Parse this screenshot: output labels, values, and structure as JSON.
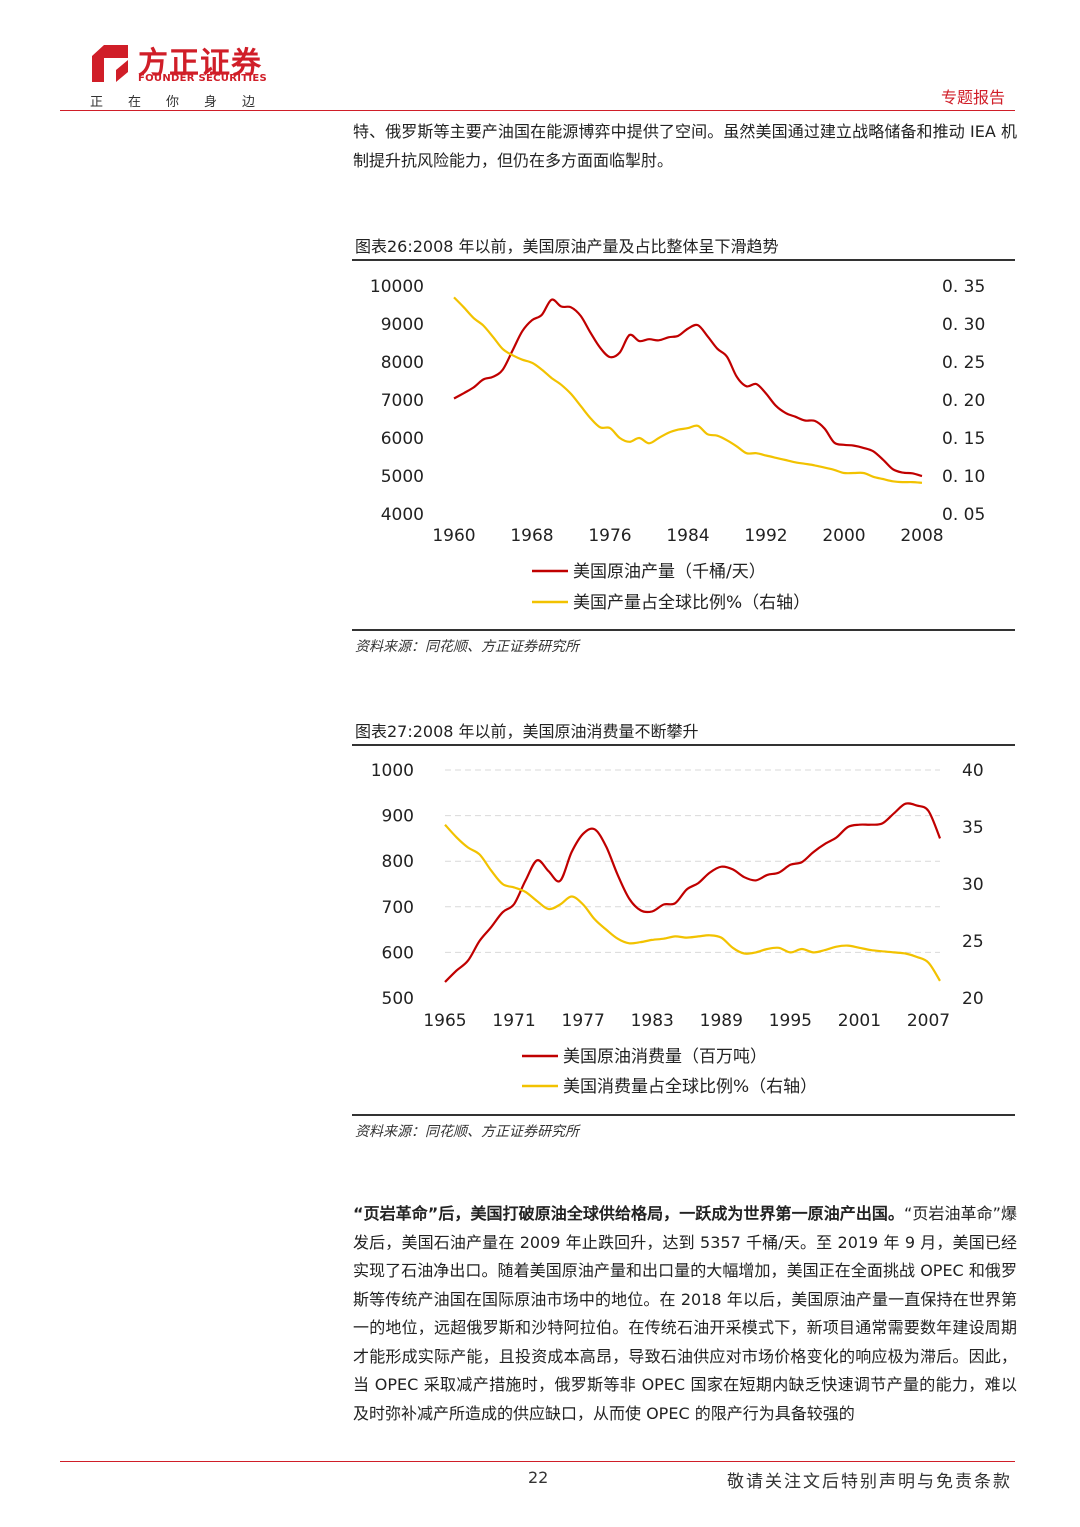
{
  "header": {
    "brand_cn": "方正证券",
    "brand_en": "FOUNDER SECURITIES",
    "slogan": "正在你身边",
    "doc_type": "专题报告",
    "brand_color": "#d01e28"
  },
  "intro_text": "特、俄罗斯等主要产油国在能源博弈中提供了空间。虽然美国通过建立战略储备和推动 IEA 机制提升抗风险能力，但仍在多方面面临掣肘。",
  "figure26": {
    "title": "图表26:2008 年以前，美国原油产量及占比整体呈下滑趋势",
    "source": "资料来源：同花顺、方正证券研究所"
  },
  "figure27": {
    "title": "图表27:2008 年以前，美国原油消费量不断攀升",
    "source": "资料来源：同花顺、方正证券研究所"
  },
  "body": {
    "lead": "“页岩革命”后，美国打破原油全球供给格局，一跃成为世界第一原油产出国。",
    "text": "“页岩油革命”爆发后，美国石油产量在 2009 年止跌回升，达到 5357 千桶/天。至 2019 年 9 月，美国已经实现了石油净出口。随着美国原油产量和出口量的大幅增加，美国正在全面挑战 OPEC 和俄罗斯等传统产油国在国际原油市场中的地位。在 2018 年以后，美国原油产量一直保持在世界第一的地位，远超俄罗斯和沙特阿拉伯。在传统石油开采模式下，新项目通常需要数年建设周期才能形成实际产能，且投资成本高昂，导致石油供应对市场价格变化的响应极为滞后。因此，当 OPEC 采取减产措施时，俄罗斯等非 OPEC 国家在短期内缺乏快速调节产量的能力，难以及时弥补减产所造成的供应缺口，从而使 OPEC 的限产行为具备较强的"
  },
  "footer": {
    "page_number": "22",
    "disclaimer": "敬请关注文后特别声明与免责条款"
  },
  "chart_data": [
    {
      "type": "line",
      "id": "fig26",
      "x_ticks": [
        "1960",
        "1968",
        "1976",
        "1984",
        "1992",
        "2000",
        "2008"
      ],
      "y_left_ticks": [
        "10000",
        "9000",
        "8000",
        "7000",
        "6000",
        "5000",
        "4000"
      ],
      "y_right_ticks": [
        "0. 35",
        "0. 30",
        "0. 25",
        "0. 20",
        "0. 15",
        "0. 10",
        "0. 05"
      ],
      "ylim_left": [
        4000,
        10000
      ],
      "ylim_right": [
        0.05,
        0.35
      ],
      "xlim": [
        1960,
        2008
      ],
      "grid": false,
      "legend_position": "bottom",
      "series": [
        {
          "name": "美国原油产量（千桶/天）",
          "axis": "left",
          "color": "#c00000",
          "x": [
            1960,
            1961,
            1962,
            1963,
            1964,
            1965,
            1966,
            1967,
            1968,
            1969,
            1970,
            1971,
            1972,
            1973,
            1974,
            1975,
            1976,
            1977,
            1978,
            1979,
            1980,
            1981,
            1982,
            1983,
            1984,
            1985,
            1986,
            1987,
            1988,
            1989,
            1990,
            1991,
            1992,
            1993,
            1994,
            1995,
            1996,
            1997,
            1998,
            1999,
            2000,
            2001,
            2002,
            2003,
            2004,
            2005,
            2006,
            2007,
            2008
          ],
          "values": [
            7040,
            7180,
            7330,
            7540,
            7610,
            7800,
            8300,
            8810,
            9100,
            9240,
            9640,
            9460,
            9440,
            9210,
            8770,
            8370,
            8130,
            8250,
            8710,
            8550,
            8600,
            8570,
            8650,
            8690,
            8880,
            8970,
            8680,
            8350,
            8140,
            7610,
            7360,
            7420,
            7170,
            6850,
            6660,
            6560,
            6460,
            6450,
            6250,
            5880,
            5820,
            5800,
            5740,
            5650,
            5430,
            5180,
            5090,
            5070,
            5000
          ]
        },
        {
          "name": "美国产量占全球比例%（右轴）",
          "axis": "right",
          "color": "#f2c200",
          "x": [
            1960,
            1961,
            1962,
            1963,
            1964,
            1965,
            1966,
            1967,
            1968,
            1969,
            1970,
            1971,
            1972,
            1973,
            1974,
            1975,
            1976,
            1977,
            1978,
            1979,
            1980,
            1981,
            1982,
            1983,
            1984,
            1985,
            1986,
            1987,
            1988,
            1989,
            1990,
            1991,
            1992,
            1993,
            1994,
            1995,
            1996,
            1997,
            1998,
            1999,
            2000,
            2001,
            2002,
            2003,
            2004,
            2005,
            2006,
            2007,
            2008
          ],
          "values": [
            0.335,
            0.322,
            0.308,
            0.298,
            0.283,
            0.267,
            0.259,
            0.253,
            0.249,
            0.24,
            0.229,
            0.22,
            0.208,
            0.192,
            0.176,
            0.164,
            0.163,
            0.15,
            0.145,
            0.15,
            0.143,
            0.15,
            0.157,
            0.161,
            0.163,
            0.166,
            0.155,
            0.153,
            0.147,
            0.139,
            0.13,
            0.13,
            0.127,
            0.124,
            0.121,
            0.118,
            0.116,
            0.114,
            0.111,
            0.108,
            0.104,
            0.104,
            0.104,
            0.099,
            0.096,
            0.093,
            0.092,
            0.092,
            0.091
          ]
        }
      ]
    },
    {
      "type": "line",
      "id": "fig27",
      "x_ticks": [
        "1965",
        "1971",
        "1977",
        "1983",
        "1989",
        "1995",
        "2001",
        "2007"
      ],
      "y_left_ticks": [
        "1000",
        "900",
        "800",
        "700",
        "600",
        "500"
      ],
      "y_right_ticks": [
        "40",
        "35",
        "30",
        "25",
        "20"
      ],
      "ylim_left": [
        500,
        1000
      ],
      "ylim_right": [
        20,
        40
      ],
      "xlim": [
        1965,
        2008
      ],
      "grid": "horizontal-dashed",
      "legend_position": "bottom",
      "series": [
        {
          "name": "美国原油消费量（百万吨）",
          "axis": "left",
          "color": "#c00000",
          "x": [
            1965,
            1966,
            1967,
            1968,
            1969,
            1970,
            1971,
            1972,
            1973,
            1974,
            1975,
            1976,
            1977,
            1978,
            1979,
            1980,
            1981,
            1982,
            1983,
            1984,
            1985,
            1986,
            1987,
            1988,
            1989,
            1990,
            1991,
            1992,
            1993,
            1994,
            1995,
            1996,
            1997,
            1998,
            1999,
            2000,
            2001,
            2002,
            2003,
            2004,
            2005,
            2006,
            2007,
            2008
          ],
          "values": [
            535,
            560,
            582,
            625,
            655,
            688,
            706,
            758,
            802,
            778,
            757,
            820,
            860,
            870,
            832,
            770,
            718,
            692,
            690,
            705,
            708,
            738,
            752,
            775,
            788,
            782,
            765,
            758,
            770,
            775,
            792,
            798,
            820,
            838,
            852,
            875,
            880,
            880,
            883,
            905,
            926,
            922,
            910,
            850
          ]
        },
        {
          "name": "美国消费量占全球比例%（右轴）",
          "axis": "right",
          "color": "#f2c200",
          "x": [
            1965,
            1966,
            1967,
            1968,
            1969,
            1970,
            1971,
            1972,
            1973,
            1974,
            1975,
            1976,
            1977,
            1978,
            1979,
            1980,
            1981,
            1982,
            1983,
            1984,
            1985,
            1986,
            1987,
            1988,
            1989,
            1990,
            1991,
            1992,
            1993,
            1994,
            1995,
            1996,
            1997,
            1998,
            1999,
            2000,
            2001,
            2002,
            2003,
            2004,
            2005,
            2006,
            2007,
            2008
          ],
          "values": [
            35.2,
            34.1,
            33.2,
            32.6,
            31.2,
            30.0,
            29.7,
            29.3,
            28.5,
            27.8,
            28.2,
            28.9,
            28.2,
            26.9,
            26.0,
            25.2,
            24.8,
            24.9,
            25.1,
            25.2,
            25.4,
            25.3,
            25.4,
            25.5,
            25.3,
            24.4,
            23.9,
            24.0,
            24.3,
            24.4,
            24.0,
            24.3,
            24.0,
            24.2,
            24.5,
            24.6,
            24.4,
            24.2,
            24.1,
            24.0,
            23.9,
            23.6,
            23.1,
            21.5
          ]
        }
      ]
    }
  ]
}
